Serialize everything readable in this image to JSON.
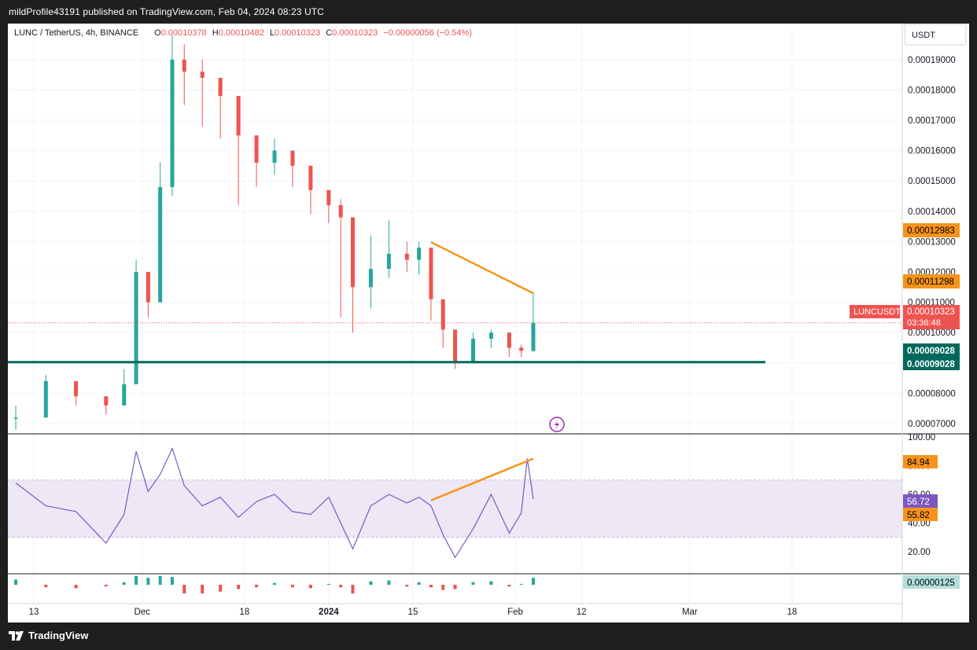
{
  "header": {
    "published_text": "mildProfile43191 published on TradingView.com, Feb 04, 2024 08:23 UTC"
  },
  "legend": {
    "symbol": "LUNC / TetherUS, 4h, BINANCE",
    "open_label": "O",
    "open": "0.00010378",
    "high_label": "H",
    "high": "0.00010482",
    "low_label": "L",
    "low": "0.00010323",
    "close_label": "C",
    "close": "0.00010323",
    "change": "−0.00000056 (−0.54%)"
  },
  "currency_button": "USDT",
  "price_tags": {
    "resistance_start": "0.00012983",
    "resistance_end": "0.00011298",
    "symbol_name": "LUNCUSDT",
    "last_price": "0.00010323",
    "countdown": "03:36:48",
    "support_a": "0.00009028",
    "support_b": "0.00009028"
  },
  "rsi_tags": {
    "upper_line": "84.94",
    "rsi_value": "56.72",
    "lower_line": "55.82"
  },
  "macd_tag": "0.00000125",
  "footer": {
    "logo_text": "TradingView"
  },
  "colors": {
    "up": "#26a69a",
    "down": "#ef5350",
    "trendline": "#f7931a",
    "support": "#00695c",
    "rsi": "#7e57c2",
    "rsi_band": "#ede7f6"
  },
  "chart_data": [
    {
      "type": "candlestick",
      "title": "LUNC / TetherUS, 4h, BINANCE",
      "y_axis_ticks": [
        "0.00007000",
        "0.00008000",
        "0.00009000",
        "0.00010000",
        "0.00011000",
        "0.00012000",
        "0.00013000",
        "0.00014000",
        "0.00015000",
        "0.00016000",
        "0.00017000",
        "0.00018000",
        "0.00019000"
      ],
      "x_axis_ticks": [
        "13",
        "Dec",
        "18",
        "2024",
        "15",
        "Feb",
        "12",
        "Mar",
        "18"
      ],
      "ylim": [
        6.63e-05,
        0.0001983
      ],
      "x": [
        "2023-11-10",
        "2023-11-15",
        "2023-11-20",
        "2023-11-25",
        "2023-11-28",
        "2023-11-30",
        "2023-12-02",
        "2023-12-04",
        "2023-12-06",
        "2023-12-08",
        "2023-12-11",
        "2023-12-14",
        "2023-12-17",
        "2023-12-20",
        "2023-12-23",
        "2023-12-26",
        "2023-12-29",
        "2024-01-01",
        "2024-01-03",
        "2024-01-05",
        "2024-01-08",
        "2024-01-11",
        "2024-01-14",
        "2024-01-16",
        "2024-01-18",
        "2024-01-20",
        "2024-01-22",
        "2024-01-25",
        "2024-01-28",
        "2024-01-31",
        "2024-02-02",
        "2024-02-04"
      ],
      "close": [
        7.2e-05,
        8.4e-05,
        7.9e-05,
        7.6e-05,
        8.3e-05,
        0.00012,
        0.00011,
        0.000148,
        0.00019,
        0.000186,
        0.000184,
        0.000178,
        0.000165,
        0.000156,
        0.00016,
        0.000155,
        0.000147,
        0.000142,
        0.000138,
        0.000115,
        0.000121,
        0.000126,
        0.000124,
        0.000128,
        0.000111,
        0.000101,
        9e-05,
        9.8e-05,
        0.0001,
        9.5e-05,
        9.4e-05,
        0.0001032
      ],
      "high": [
        7.6e-05,
        8.6e-05,
        8.2e-05,
        7.9e-05,
        8.8e-05,
        0.000124,
        0.00012,
        0.000156,
        0.000198,
        0.000195,
        0.00019,
        0.000182,
        0.00017,
        0.000162,
        0.000164,
        0.000158,
        0.00015,
        0.000147,
        0.000144,
        0.000119,
        0.000132,
        0.000137,
        0.00013,
        0.00013,
        0.000114,
        0.000104,
        9.3e-05,
        0.0001,
        0.000101,
        9.8e-05,
        9.6e-05,
        0.000113
      ],
      "low": [
        6.8e-05,
        7.8e-05,
        7.6e-05,
        7.3e-05,
        7.6e-05,
        9e-05,
        0.000105,
        0.00011,
        0.000145,
        0.000175,
        0.000168,
        0.000164,
        0.000142,
        0.000148,
        0.000152,
        0.000148,
        0.000139,
        0.000136,
        0.000105,
        0.0001,
        0.000108,
        0.000118,
        0.00012,
        0.000119,
        0.000104,
        9.5e-05,
        8.8e-05,
        9e-05,
        9.5e-05,
        9.2e-05,
        9.2e-05,
        9.35e-05
      ],
      "support_level": 9.028e-05,
      "resistance_trendline": [
        {
          "x": "2024-01-18",
          "y": 0.00012983
        },
        {
          "x": "2024-02-04",
          "y": 0.00011298
        }
      ],
      "last_price": 0.00010323
    },
    {
      "type": "line",
      "title": "RSI",
      "y_axis_ticks": [
        "20.00",
        "40.00",
        "60.00",
        "80.00",
        "100.00"
      ],
      "ylim": [
        10,
        103
      ],
      "band": [
        30,
        70
      ],
      "x": [
        "2023-11-10",
        "2023-11-15",
        "2023-11-20",
        "2023-11-25",
        "2023-11-28",
        "2023-11-30",
        "2023-12-02",
        "2023-12-04",
        "2023-12-06",
        "2023-12-08",
        "2023-12-11",
        "2023-12-14",
        "2023-12-17",
        "2023-12-20",
        "2023-12-23",
        "2023-12-26",
        "2023-12-29",
        "2024-01-01",
        "2024-01-03",
        "2024-01-05",
        "2024-01-08",
        "2024-01-11",
        "2024-01-14",
        "2024-01-16",
        "2024-01-18",
        "2024-01-20",
        "2024-01-22",
        "2024-01-25",
        "2024-01-28",
        "2024-01-31",
        "2024-02-02",
        "2024-02-03",
        "2024-02-04"
      ],
      "values": [
        68,
        52,
        48,
        26,
        46,
        90,
        62,
        74,
        92,
        66,
        52,
        58,
        44,
        55,
        60,
        48,
        46,
        58,
        40,
        22,
        52,
        60,
        54,
        58,
        52,
        32,
        16,
        36,
        60,
        33,
        47,
        84.94,
        56.72
      ],
      "divergence_trendline": [
        {
          "x": "2024-01-18",
          "y": 55.82
        },
        {
          "x": "2024-02-04",
          "y": 84.94
        }
      ]
    },
    {
      "type": "histogram",
      "title": "MACD histogram",
      "x": [
        "2023-11-10",
        "2023-11-15",
        "2023-11-20",
        "2023-11-25",
        "2023-11-28",
        "2023-11-30",
        "2023-12-02",
        "2023-12-04",
        "2023-12-06",
        "2023-12-08",
        "2023-12-11",
        "2023-12-14",
        "2023-12-17",
        "2023-12-20",
        "2023-12-23",
        "2023-12-26",
        "2023-12-29",
        "2024-01-01",
        "2024-01-03",
        "2024-01-05",
        "2024-01-08",
        "2024-01-11",
        "2024-01-14",
        "2024-01-16",
        "2024-01-18",
        "2024-01-20",
        "2024-01-22",
        "2024-01-25",
        "2024-01-28",
        "2024-01-31",
        "2024-02-02",
        "2024-02-04"
      ],
      "values": [
        0.6,
        -0.3,
        -0.4,
        -0.2,
        0.3,
        1.0,
        0.8,
        1.0,
        0.9,
        -1.0,
        -1.0,
        -0.8,
        -0.5,
        -0.3,
        0.2,
        -0.3,
        -0.4,
        0.1,
        -0.3,
        -1.0,
        0.4,
        0.5,
        -0.2,
        0.3,
        -0.3,
        -0.6,
        -0.5,
        0.3,
        0.4,
        -0.2,
        0.1,
        0.8
      ],
      "last_value": 1.25e-06
    }
  ]
}
